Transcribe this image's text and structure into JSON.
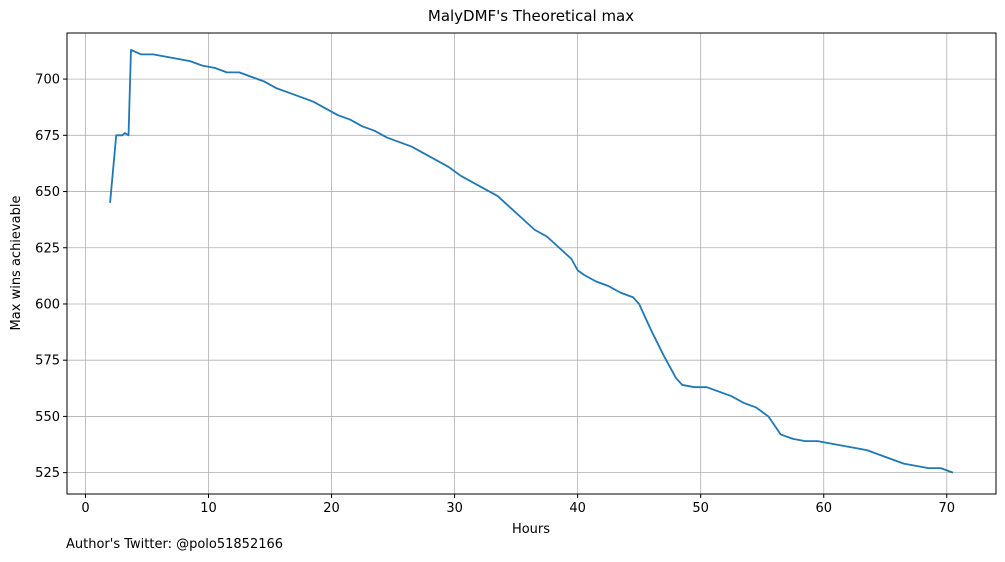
{
  "footnote": "Author's Twitter: @polo51852166",
  "chart_data": {
    "type": "line",
    "title": "MalyDMF's Theoretical max",
    "xlabel": "Hours",
    "ylabel": "Max wins achievable",
    "xlim": [
      -1.5,
      74
    ],
    "ylim": [
      515.5,
      720.5
    ],
    "xticks": [
      0,
      10,
      20,
      30,
      40,
      50,
      60,
      70
    ],
    "yticks": [
      525,
      550,
      575,
      600,
      625,
      650,
      675,
      700
    ],
    "grid": true,
    "line_color": "#1f77b4",
    "series": [
      {
        "x": [
          2.0,
          2.5,
          3.0,
          3.2,
          3.5,
          3.7,
          4.5,
          5.5,
          6.5,
          7.5,
          8.5,
          9.5,
          10.5,
          11.5,
          12.5,
          13.5,
          14.5,
          15.5,
          16.5,
          17.5,
          18.5,
          19.5,
          20.5,
          21.5,
          22.5,
          23.5,
          24.5,
          25.5,
          26.5,
          27.5,
          28.5,
          29.5,
          30.5,
          31.5,
          32.5,
          33.5,
          34.5,
          35.5,
          36.5,
          37.5,
          38.5,
          39.5,
          40.0,
          40.5,
          41.5,
          42.5,
          43.5,
          44.5,
          45.0,
          46.0,
          47.0,
          48.0,
          48.5,
          49.5,
          50.5,
          51.5,
          52.5,
          53.5,
          54.5,
          55.5,
          56.5,
          57.5,
          58.5,
          59.5,
          60.5,
          61.5,
          62.5,
          63.5,
          64.5,
          65.5,
          66.5,
          67.5,
          68.5,
          69.5,
          70.5
        ],
        "y": [
          645,
          675,
          675,
          676,
          675,
          713,
          711,
          711,
          710,
          709,
          708,
          706,
          705,
          703,
          703,
          701,
          699,
          696,
          694,
          692,
          690,
          687,
          684,
          682,
          679,
          677,
          674,
          672,
          670,
          667,
          664,
          661,
          657,
          654,
          651,
          648,
          643,
          638,
          633,
          630,
          625,
          620,
          615,
          613,
          610,
          608,
          605,
          603,
          600,
          588,
          577,
          567,
          564,
          563,
          563,
          561,
          559,
          556,
          554,
          550,
          542,
          540,
          539,
          539,
          538,
          537,
          536,
          535,
          533,
          531,
          529,
          528,
          527,
          527,
          525
        ]
      }
    ]
  }
}
